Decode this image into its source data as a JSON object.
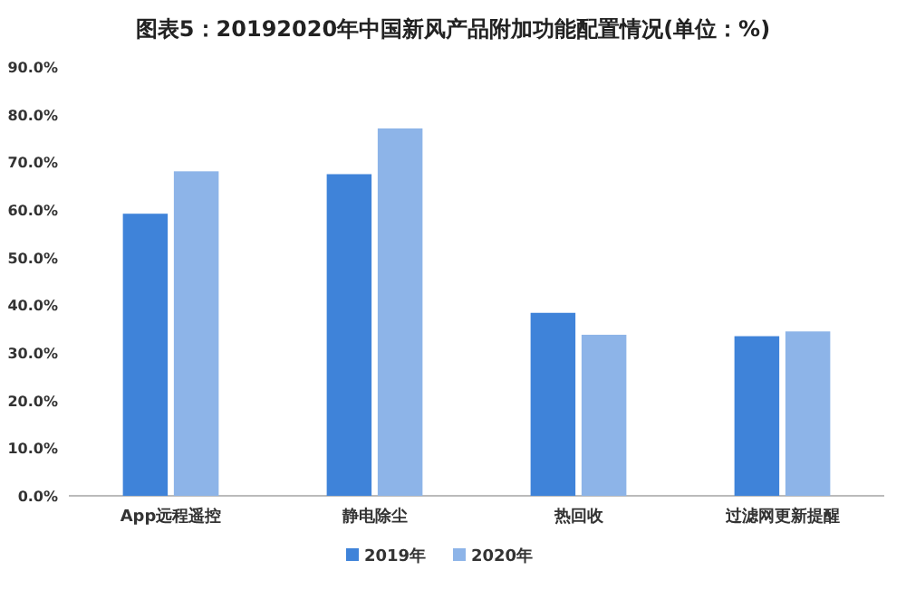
{
  "chart_data": {
    "type": "bar",
    "title": "图表5：20192020年中国新风产品附加功能配置情况(单位：%)",
    "categories": [
      "App远程遥控",
      "静电除尘",
      "热回收",
      "过滤网更新提醒"
    ],
    "series": [
      {
        "name": "2019年",
        "color": "#3f83d9",
        "values": [
          59.2,
          67.5,
          38.4,
          33.5
        ]
      },
      {
        "name": "2020年",
        "color": "#8db4e8",
        "values": [
          68.1,
          77.1,
          33.8,
          34.5
        ]
      }
    ],
    "ylim": [
      0,
      90
    ],
    "yticks": [
      {
        "value": 0,
        "label": "0.0%"
      },
      {
        "value": 10,
        "label": "10.0%"
      },
      {
        "value": 20,
        "label": "20.0%"
      },
      {
        "value": 30,
        "label": "30.0%"
      },
      {
        "value": 40,
        "label": "40.0%"
      },
      {
        "value": 50,
        "label": "50.0%"
      },
      {
        "value": 60,
        "label": "60.0%"
      },
      {
        "value": 70,
        "label": "70.0%"
      },
      {
        "value": 80,
        "label": "80.0%"
      },
      {
        "value": 90,
        "label": "90.0%"
      }
    ],
    "legend": "bottom"
  }
}
